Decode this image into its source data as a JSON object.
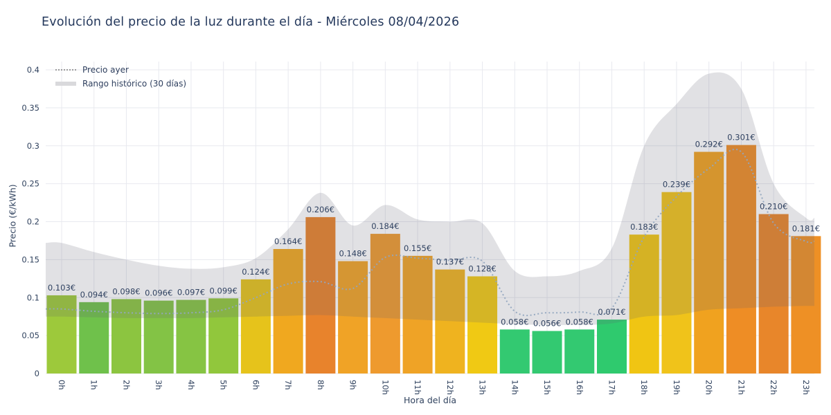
{
  "title": "Evolución del precio de la luz durante el día - Miércoles 08/04/2026",
  "legend": {
    "yesterday": "Precio ayer",
    "range": "Rango histórico (30 días)"
  },
  "chart_data": {
    "type": "bar",
    "title": "Evolución del precio de la luz durante el día - Miércoles 08/04/2026",
    "xlabel": "Hora del día",
    "ylabel": "Precio (€/kWh)",
    "ylim": [
      0,
      0.4
    ],
    "grid": true,
    "legend_position": "top-left",
    "y_ticks": [
      "0",
      "0.05",
      "0.1",
      "0.15",
      "0.2",
      "0.25",
      "0.3",
      "0.35",
      "0.4"
    ],
    "categories": [
      "0h",
      "1h",
      "2h",
      "3h",
      "4h",
      "5h",
      "6h",
      "7h",
      "8h",
      "9h",
      "10h",
      "11h",
      "12h",
      "13h",
      "14h",
      "15h",
      "16h",
      "17h",
      "18h",
      "19h",
      "20h",
      "21h",
      "22h",
      "23h"
    ],
    "values": [
      0.103,
      0.094,
      0.098,
      0.096,
      0.097,
      0.099,
      0.124,
      0.164,
      0.206,
      0.148,
      0.184,
      0.155,
      0.137,
      0.128,
      0.058,
      0.056,
      0.058,
      0.071,
      0.183,
      0.239,
      0.292,
      0.301,
      0.21,
      0.181
    ],
    "bar_labels": [
      "0.103€",
      "0.094€",
      "0.098€",
      "0.096€",
      "0.097€",
      "0.099€",
      "0.124€",
      "0.164€",
      "0.206€",
      "0.148€",
      "0.184€",
      "0.155€",
      "0.137€",
      "0.128€",
      "0.058€",
      "0.056€",
      "0.058€",
      "0.071€",
      "0.183€",
      "0.239€",
      "0.292€",
      "0.301€",
      "0.210€",
      "0.181€"
    ],
    "bar_colors": [
      "#9dc93b",
      "#6fc14b",
      "#8cc540",
      "#83c345",
      "#86c443",
      "#91c73c",
      "#e6c31b",
      "#f0a81f",
      "#e8832c",
      "#f0a326",
      "#ee9a2e",
      "#efa326",
      "#efb31f",
      "#f0c914",
      "#33c971",
      "#33c971",
      "#33c971",
      "#2fca6e",
      "#f0c513",
      "#f0c31a",
      "#f0a21f",
      "#ee8d25",
      "#e8862a",
      "#ee9025"
    ],
    "series": [
      {
        "name": "Precio ayer",
        "type": "dotted-line",
        "values": [
          0.085,
          0.082,
          0.08,
          0.079,
          0.08,
          0.084,
          0.1,
          0.118,
          0.121,
          0.112,
          0.153,
          0.152,
          0.149,
          0.148,
          0.082,
          0.08,
          0.081,
          0.086,
          0.18,
          0.233,
          0.27,
          0.292,
          0.198,
          0.174
        ]
      },
      {
        "name": "Rango histórico (30 días)",
        "type": "band",
        "min": [
          0.075,
          0.074,
          0.073,
          0.073,
          0.073,
          0.074,
          0.075,
          0.076,
          0.077,
          0.075,
          0.073,
          0.071,
          0.069,
          0.067,
          0.065,
          0.064,
          0.064,
          0.066,
          0.075,
          0.077,
          0.084,
          0.086,
          0.088,
          0.089
        ],
        "max": [
          0.172,
          0.16,
          0.15,
          0.142,
          0.138,
          0.14,
          0.152,
          0.19,
          0.238,
          0.195,
          0.222,
          0.203,
          0.2,
          0.198,
          0.135,
          0.128,
          0.135,
          0.165,
          0.3,
          0.355,
          0.395,
          0.375,
          0.25,
          0.205
        ]
      }
    ]
  },
  "colors": {
    "title_text": "#24385c",
    "axis_text": "#31435f",
    "bar_label_text": "#2f4160",
    "grid": "#e8e9ef",
    "band_fill": "#5f5f6e",
    "dotted_line": "#92a6bf",
    "legend_dotted": "#9a9a9a",
    "legend_band": "#d9d9dc"
  }
}
